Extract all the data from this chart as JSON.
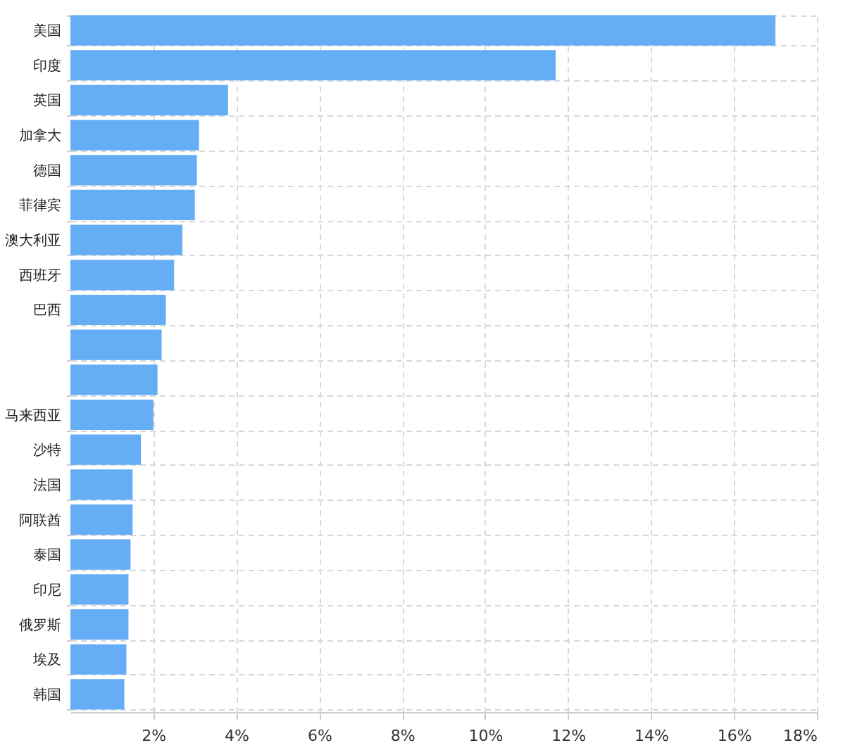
{
  "chart_data": {
    "type": "bar",
    "orientation": "horizontal",
    "categories": [
      "美国",
      "印度",
      "英国",
      "加拿大",
      "德国",
      "菲律宾",
      "澳大利亚",
      "西班牙",
      "巴西",
      null,
      null,
      "马来西亚",
      "沙特",
      "法国",
      "阿联酋",
      "泰国",
      "印尼",
      "俄罗斯",
      "埃及",
      "韩国"
    ],
    "values": [
      17.0,
      11.7,
      3.8,
      3.1,
      3.05,
      3.0,
      2.7,
      2.5,
      2.3,
      2.2,
      2.1,
      2.0,
      1.7,
      1.5,
      1.5,
      1.45,
      1.4,
      1.4,
      1.35,
      1.3
    ],
    "color": "#65adf5",
    "xlim": [
      0,
      18
    ],
    "xticks": [
      {
        "value": 2,
        "label": "2%"
      },
      {
        "value": 4,
        "label": "4%"
      },
      {
        "value": 6,
        "label": "6%"
      },
      {
        "value": 8,
        "label": "8%"
      },
      {
        "value": 10,
        "label": "10%"
      },
      {
        "value": 12,
        "label": "12%"
      },
      {
        "value": 14,
        "label": "14%"
      },
      {
        "value": 16,
        "label": "16%"
      },
      {
        "value": 18,
        "label": "18%"
      }
    ],
    "grid": true
  }
}
